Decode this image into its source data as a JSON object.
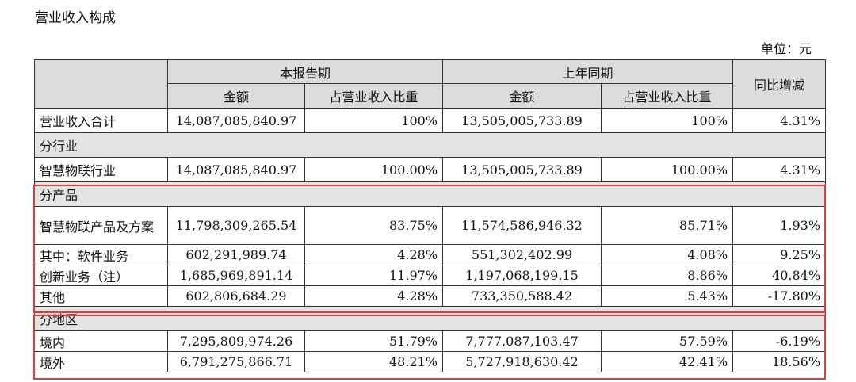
{
  "title": "营业收入构成",
  "unit": "单位：元",
  "headers": {
    "current_period": "本报告期",
    "prior_period": "上年同期",
    "yoy": "同比增减",
    "amount": "金额",
    "share": "占营业收入比重"
  },
  "rows": [
    {
      "label": "营业收入合计",
      "cur_amount": "14,087,085,840.97",
      "cur_share": "100%",
      "pri_amount": "13,505,005,733.89",
      "pri_share": "100%",
      "yoy": "4.31%"
    },
    {
      "section": "分行业"
    },
    {
      "label": "智慧物联行业",
      "cur_amount": "14,087,085,840.97",
      "cur_share": "100.00%",
      "pri_amount": "13,505,005,733.89",
      "pri_share": "100.00%",
      "yoy": "4.31%"
    },
    {
      "section": "分产品"
    },
    {
      "label": "智慧物联产品及方案",
      "cur_amount": "11,798,309,265.54",
      "cur_share": "83.75%",
      "pri_amount": "11,574,586,946.32",
      "pri_share": "85.71%",
      "yoy": "1.93%"
    },
    {
      "label": "其中：软件业务",
      "cur_amount": "602,291,989.74",
      "cur_share": "4.28%",
      "pri_amount": "551,302,402.99",
      "pri_share": "4.08%",
      "yoy": "9.25%"
    },
    {
      "label": "创新业务（注）",
      "cur_amount": "1,685,969,891.14",
      "cur_share": "11.97%",
      "pri_amount": "1,197,068,199.15",
      "pri_share": "8.86%",
      "yoy": "40.84%"
    },
    {
      "label": "其他",
      "cur_amount": "602,806,684.29",
      "cur_share": "4.28%",
      "pri_amount": "733,350,588.42",
      "pri_share": "5.43%",
      "yoy": "-17.80%"
    },
    {
      "section": "分地区"
    },
    {
      "label": "境内",
      "cur_amount": "7,295,809,974.26",
      "cur_share": "51.79%",
      "pri_amount": "7,777,087,103.47",
      "pri_share": "57.59%",
      "yoy": "-6.19%"
    },
    {
      "label": "境外",
      "cur_amount": "6,791,275,866.71",
      "cur_share": "48.21%",
      "pri_amount": "5,727,918,630.42",
      "pri_share": "42.41%",
      "yoy": "18.56%"
    }
  ],
  "highlight_color": "#e23b3b"
}
